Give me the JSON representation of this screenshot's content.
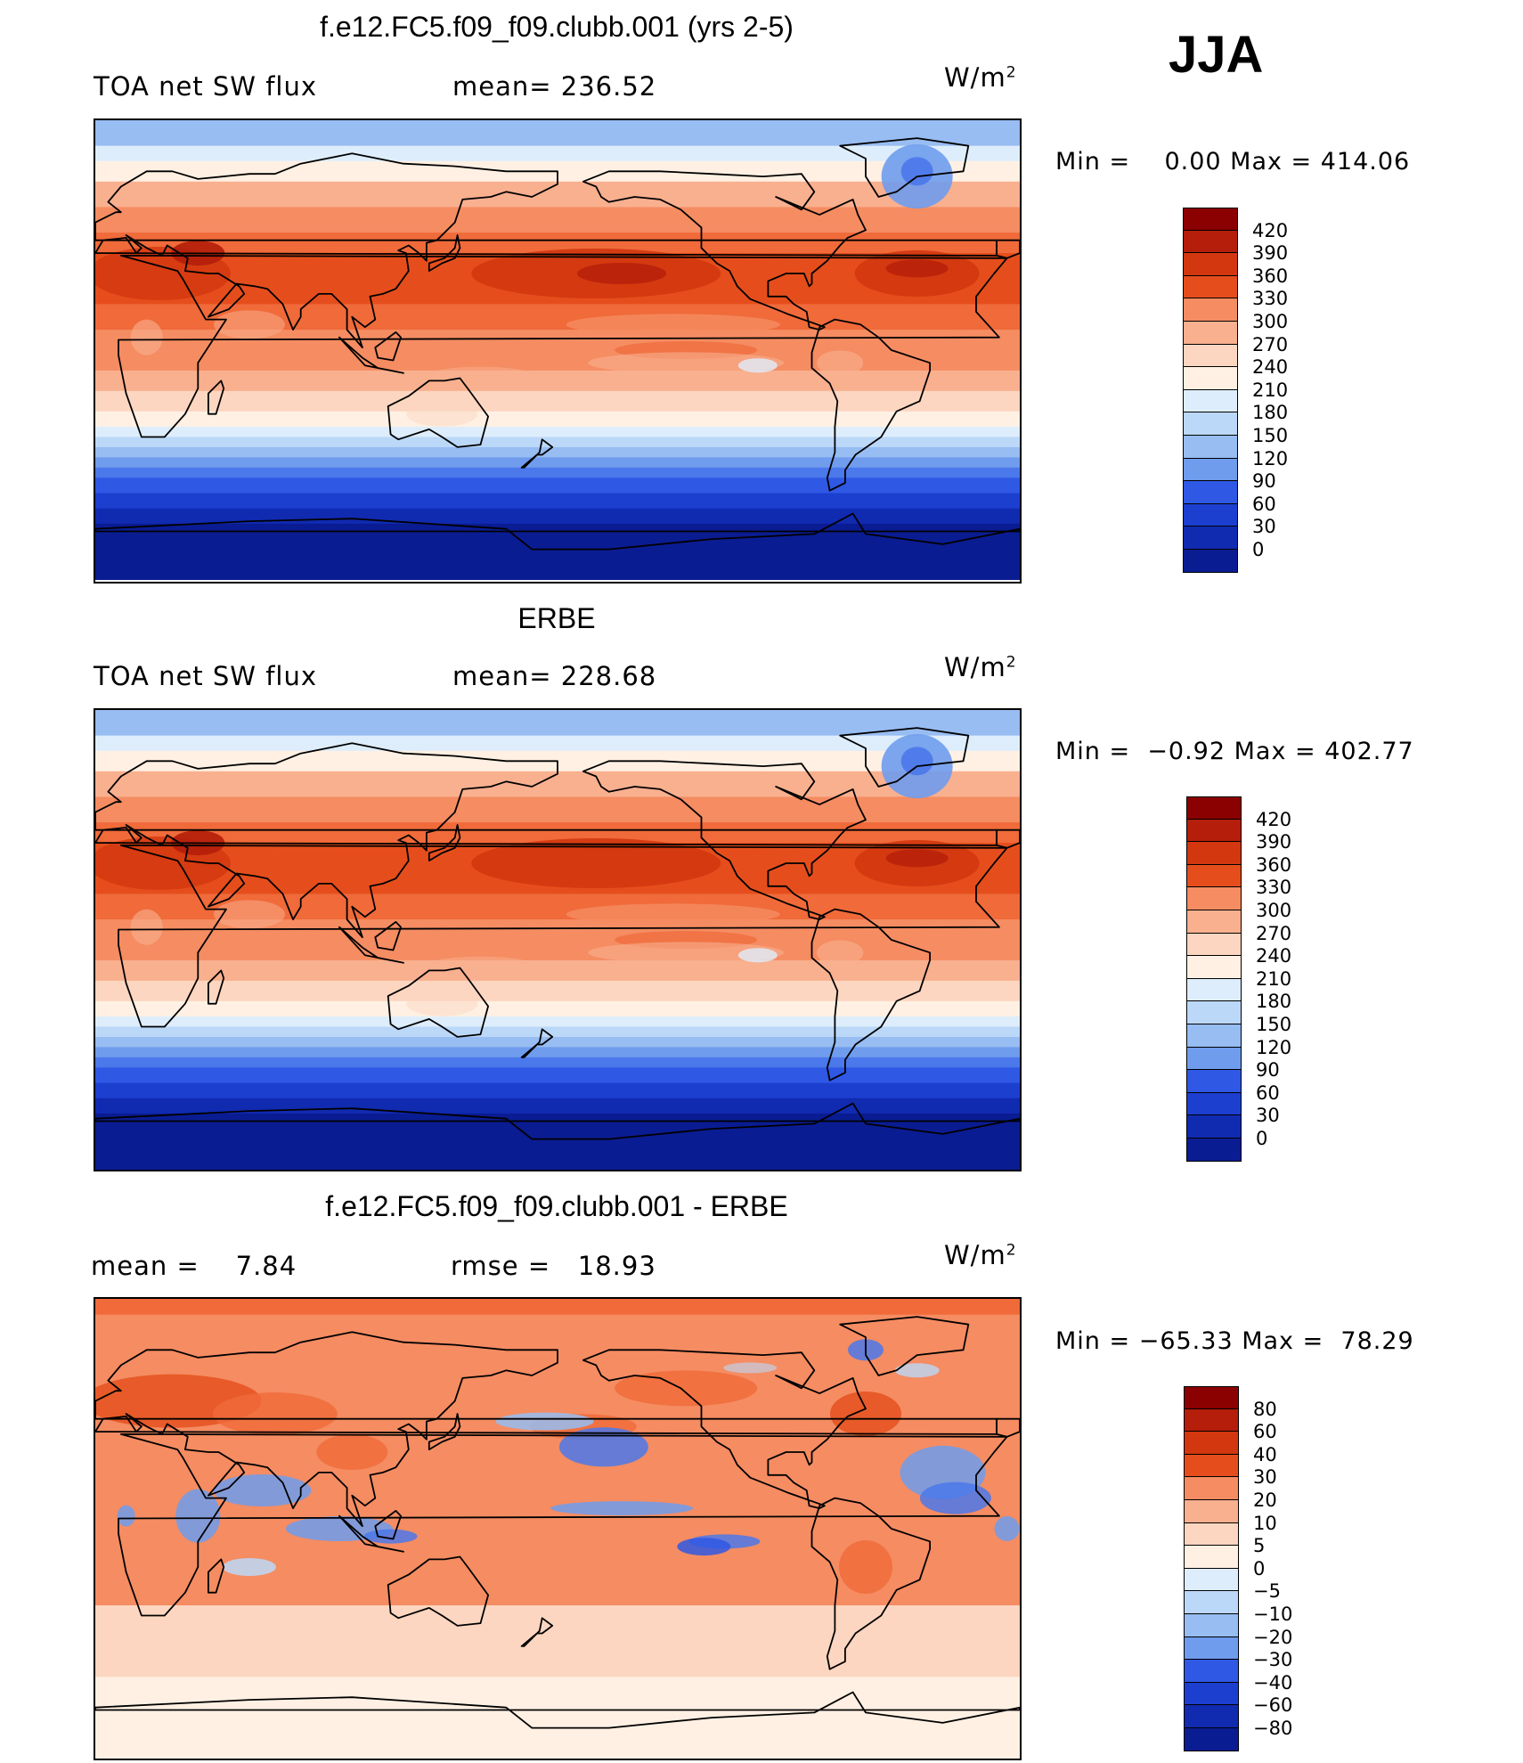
{
  "season": "JJA",
  "panels": [
    {
      "title": "f.e12.FC5.f09_f09.clubb.001 (yrs 2-5)",
      "left_text": "TOA net SW flux",
      "stat_text": "mean= 236.52",
      "units": "W/m",
      "units_sup": "2",
      "minmax": "Min =    0.00 Max = 414.06",
      "colorbar_labels": [
        "420",
        "390",
        "360",
        "330",
        "300",
        "270",
        "240",
        "210",
        "180",
        "150",
        "120",
        "90",
        "60",
        "30",
        "0"
      ]
    },
    {
      "title": "ERBE",
      "left_text": "TOA net SW flux",
      "stat_text": "mean= 228.68",
      "units": "W/m",
      "units_sup": "2",
      "minmax": "Min =  −0.92 Max = 402.77",
      "colorbar_labels": [
        "420",
        "390",
        "360",
        "330",
        "300",
        "270",
        "240",
        "210",
        "180",
        "150",
        "120",
        "90",
        "60",
        "30",
        "0"
      ]
    },
    {
      "title": "f.e12.FC5.f09_f09.clubb.001 - ERBE",
      "left_text": "mean =    7.84",
      "stat_text": "rmse =   18.93",
      "units": "W/m",
      "units_sup": "2",
      "minmax": "Min = −65.33 Max =  78.29",
      "colorbar_labels": [
        "80",
        "60",
        "40",
        "30",
        "20",
        "10",
        "5",
        "0",
        "−5",
        "−10",
        "−20",
        "−30",
        "−40",
        "−60",
        "−80"
      ]
    }
  ],
  "colors": {
    "field_scale": [
      "#8b0000",
      "#b41e0a",
      "#d2370f",
      "#e54e1c",
      "#f06a3a",
      "#f58c62",
      "#f9b08f",
      "#fcd6c0",
      "#fff0e3",
      "#deedfb",
      "#bcd8f8",
      "#97bdf2",
      "#6f9ced",
      "#4b78ea",
      "#2f58e4",
      "#1c3fd0",
      "#102ab0",
      "#0a1c92"
    ],
    "diff_scale": [
      "#8b0000",
      "#b41e0a",
      "#d2370f",
      "#e54e1c",
      "#f06a3a",
      "#f58c62",
      "#f9b08f",
      "#fcd6c0",
      "#fff0e3",
      "#deedfb",
      "#bcd8f8",
      "#97bdf2",
      "#6f9ced",
      "#4b78ea",
      "#2f58e4",
      "#1c3fd0",
      "#102ab0",
      "#0a1c92"
    ]
  }
}
